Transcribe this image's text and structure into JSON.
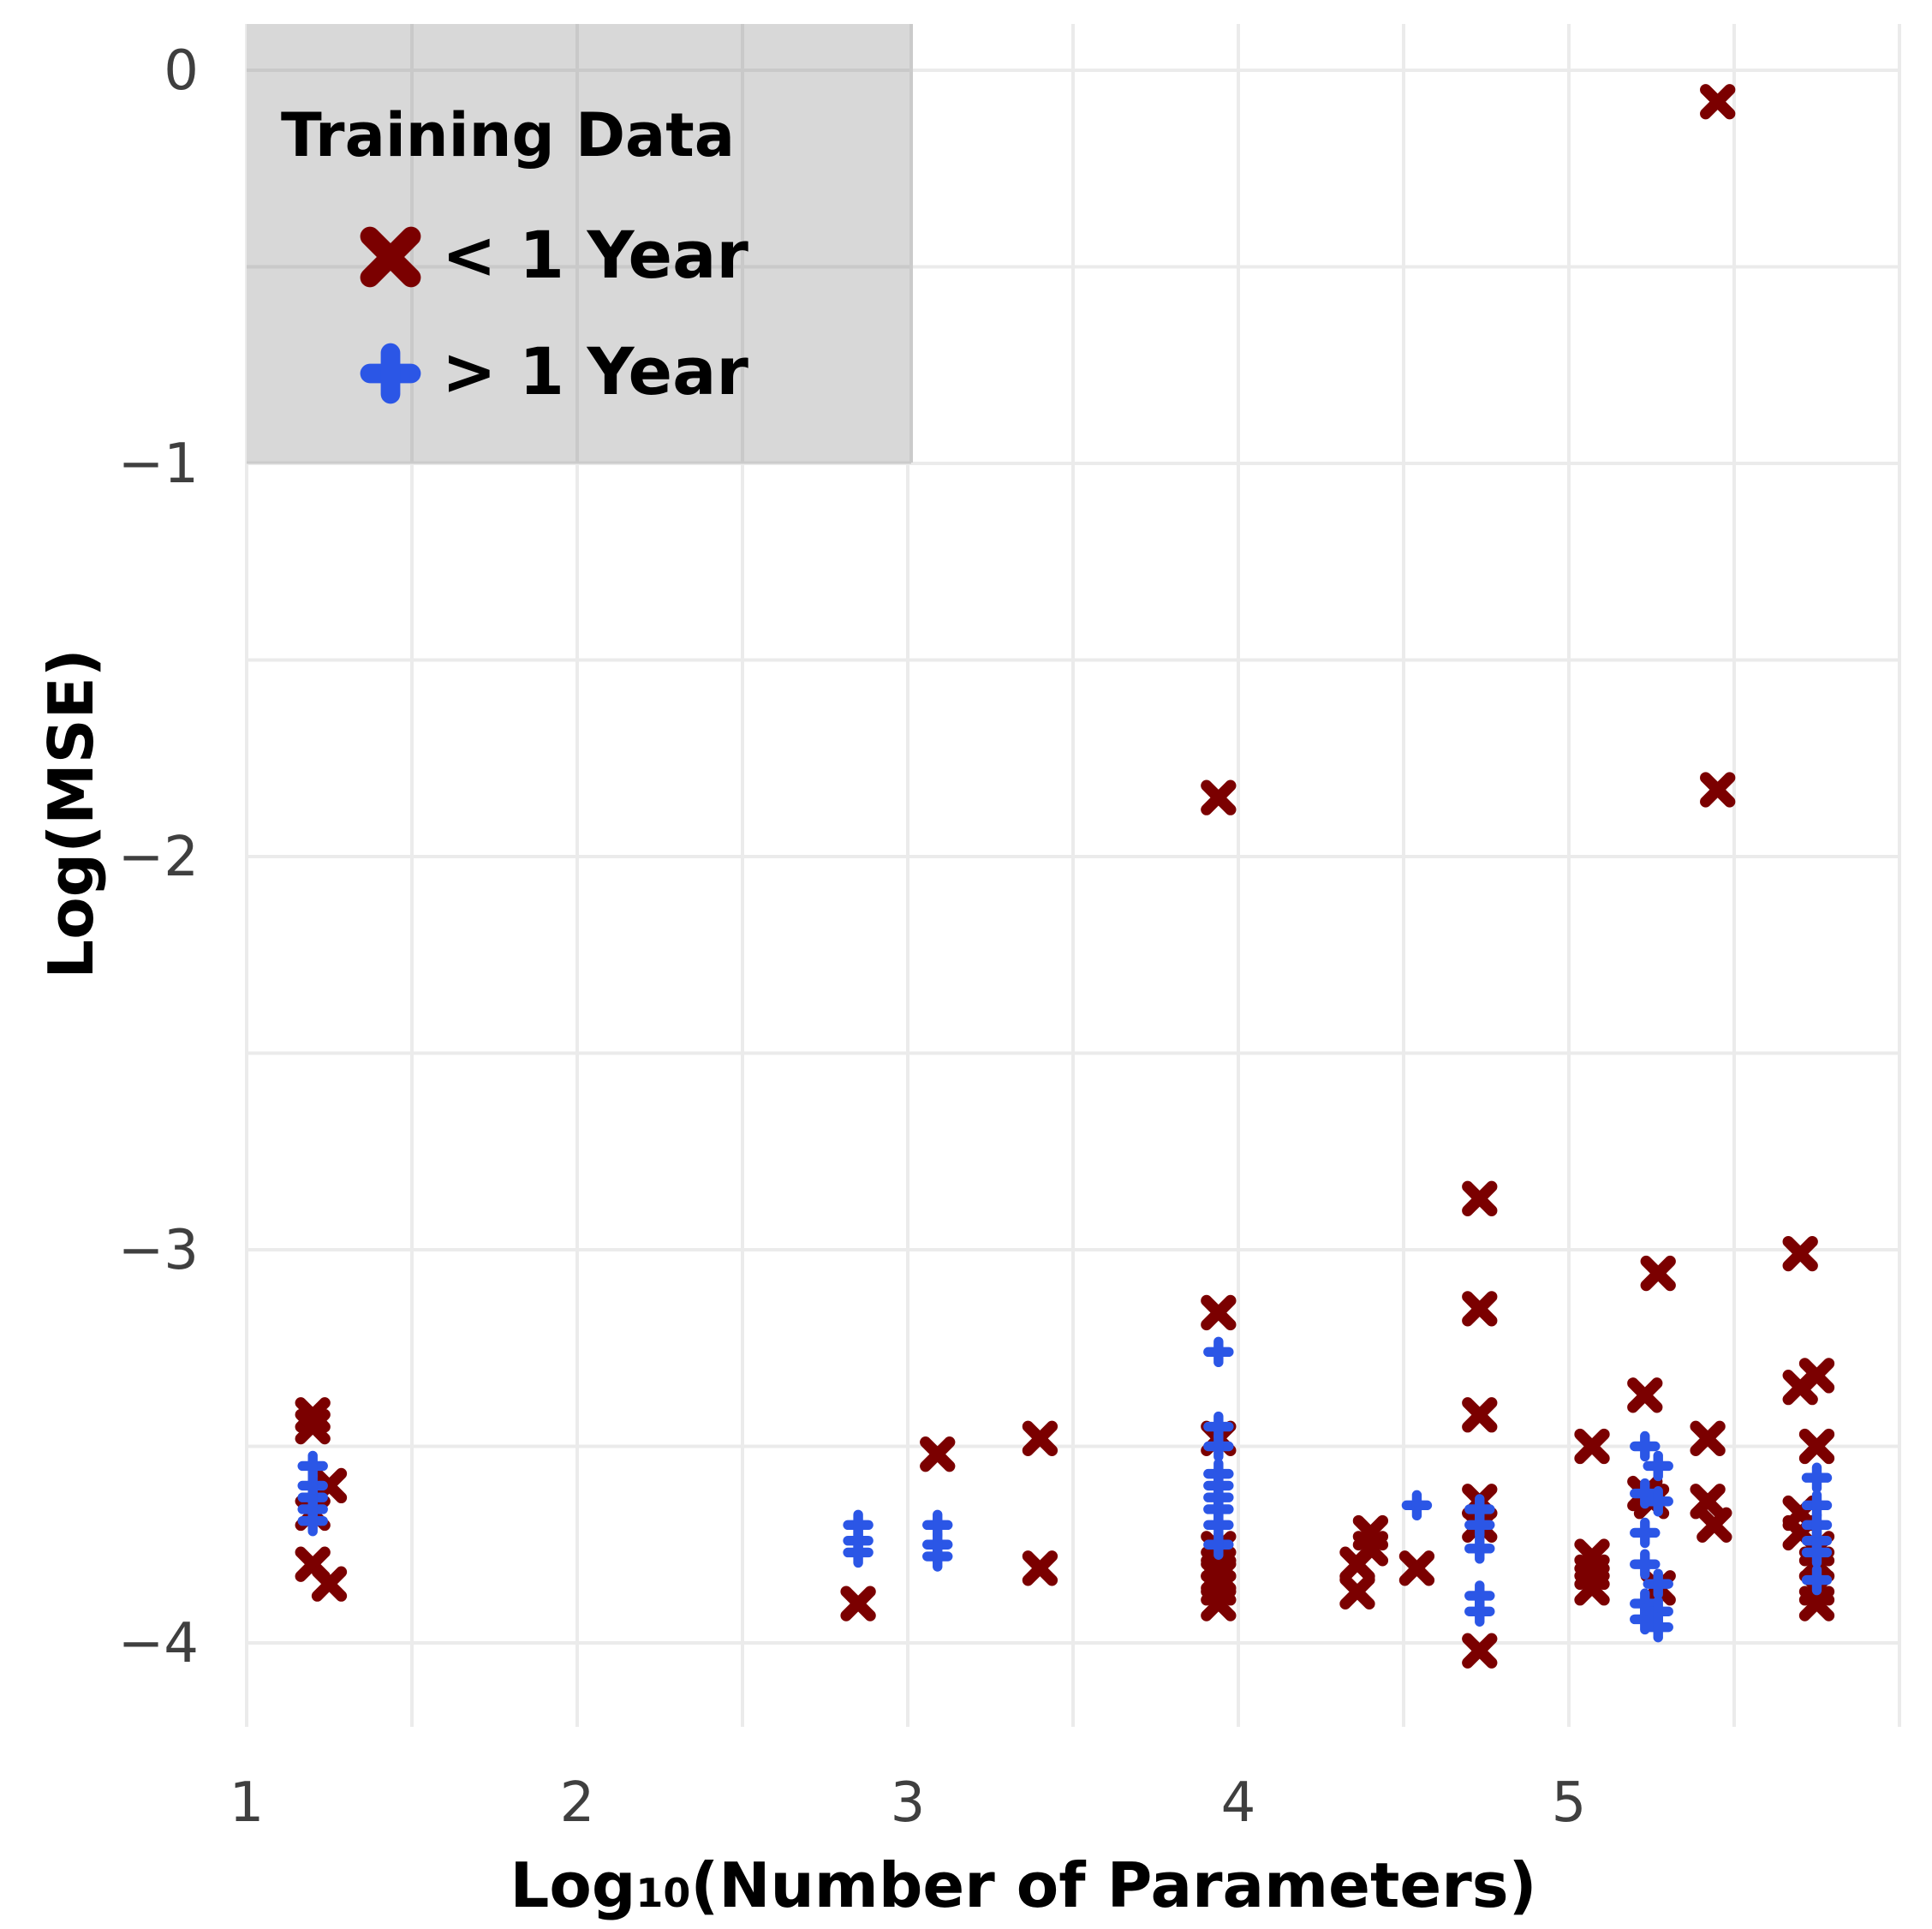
{
  "chart_data": {
    "type": "scatter",
    "title": "",
    "xlabel_main": "Log",
    "xlabel_sub": "10",
    "xlabel_rest": "(Number of Parameters)",
    "ylabel": "Log(MSE)",
    "xlim": [
      1,
      6
    ],
    "ylim": [
      -4.2,
      0.12
    ],
    "x_ticks": [
      1,
      2,
      3,
      4,
      5
    ],
    "y_ticks": [
      0,
      -1,
      -2,
      -3,
      -4
    ],
    "x_tick_labels": [
      "1",
      "2",
      "3",
      "4",
      "5"
    ],
    "y_tick_labels": [
      "0",
      "−1",
      "−2",
      "−3",
      "−4"
    ],
    "grid": true,
    "legend": {
      "title": "Training Data",
      "position": "top-left",
      "entries": [
        "< 1 Year",
        "> 1 Year"
      ]
    },
    "colors": {
      "lt1": "#7b0000",
      "gt1": "#2b56e6",
      "legend_bg": "#d8d8d8",
      "grid": "#ebebeb"
    },
    "series": [
      {
        "name": "< 1 Year",
        "marker": "x",
        "points": [
          [
            1.2,
            -3.42
          ],
          [
            1.2,
            -3.45
          ],
          [
            1.2,
            -3.67
          ],
          [
            1.2,
            -3.8
          ],
          [
            1.25,
            -3.6
          ],
          [
            1.25,
            -3.85
          ],
          [
            2.85,
            -3.9
          ],
          [
            3.09,
            -3.52
          ],
          [
            3.4,
            -3.48
          ],
          [
            3.4,
            -3.81
          ],
          [
            3.94,
            -1.85
          ],
          [
            3.94,
            -3.16
          ],
          [
            3.94,
            -3.48
          ],
          [
            3.94,
            -3.76
          ],
          [
            3.94,
            -3.8
          ],
          [
            3.94,
            -3.83
          ],
          [
            3.94,
            -3.86
          ],
          [
            3.94,
            -3.9
          ],
          [
            4.36,
            -3.8
          ],
          [
            4.36,
            -3.87
          ],
          [
            4.4,
            -3.72
          ],
          [
            4.4,
            -3.76
          ],
          [
            4.54,
            -3.81
          ],
          [
            4.73,
            -2.87
          ],
          [
            4.73,
            -3.15
          ],
          [
            4.73,
            -3.42
          ],
          [
            4.73,
            -3.64
          ],
          [
            4.73,
            -3.7
          ],
          [
            4.73,
            -4.02
          ],
          [
            5.07,
            -3.5
          ],
          [
            5.07,
            -3.78
          ],
          [
            5.07,
            -3.82
          ],
          [
            5.07,
            -3.86
          ],
          [
            5.23,
            -3.37
          ],
          [
            5.23,
            -3.62
          ],
          [
            5.25,
            -3.64
          ],
          [
            5.27,
            -3.06
          ],
          [
            5.27,
            -3.86
          ],
          [
            5.42,
            -3.48
          ],
          [
            5.42,
            -3.64
          ],
          [
            5.44,
            -3.7
          ],
          [
            5.45,
            -0.08
          ],
          [
            5.45,
            -1.83
          ],
          [
            5.7,
            -3.01
          ],
          [
            5.7,
            -3.35
          ],
          [
            5.7,
            -3.67
          ],
          [
            5.7,
            -3.72
          ],
          [
            5.75,
            -3.32
          ],
          [
            5.75,
            -3.5
          ],
          [
            5.75,
            -3.76
          ],
          [
            5.75,
            -3.8
          ],
          [
            5.75,
            -3.86
          ],
          [
            5.75,
            -3.9
          ]
        ]
      },
      {
        "name": "> 1 Year",
        "marker": "plus",
        "points": [
          [
            1.2,
            -3.55
          ],
          [
            1.2,
            -3.6
          ],
          [
            1.2,
            -3.63
          ],
          [
            1.2,
            -3.66
          ],
          [
            1.2,
            -3.69
          ],
          [
            2.85,
            -3.7
          ],
          [
            2.85,
            -3.74
          ],
          [
            2.85,
            -3.77
          ],
          [
            3.09,
            -3.7
          ],
          [
            3.09,
            -3.75
          ],
          [
            3.09,
            -3.78
          ],
          [
            3.94,
            -3.26
          ],
          [
            3.94,
            -3.45
          ],
          [
            3.94,
            -3.5
          ],
          [
            3.94,
            -3.57
          ],
          [
            3.94,
            -3.6
          ],
          [
            3.94,
            -3.63
          ],
          [
            3.94,
            -3.66
          ],
          [
            3.94,
            -3.7
          ],
          [
            3.94,
            -3.75
          ],
          [
            4.54,
            -3.65
          ],
          [
            4.73,
            -3.66
          ],
          [
            4.73,
            -3.7
          ],
          [
            4.73,
            -3.76
          ],
          [
            4.73,
            -3.88
          ],
          [
            4.73,
            -3.92
          ],
          [
            5.23,
            -3.5
          ],
          [
            5.23,
            -3.62
          ],
          [
            5.23,
            -3.72
          ],
          [
            5.23,
            -3.8
          ],
          [
            5.23,
            -3.9
          ],
          [
            5.23,
            -3.94
          ],
          [
            5.27,
            -3.55
          ],
          [
            5.27,
            -3.64
          ],
          [
            5.27,
            -3.85
          ],
          [
            5.27,
            -3.92
          ],
          [
            5.27,
            -3.96
          ],
          [
            5.75,
            -3.58
          ],
          [
            5.75,
            -3.65
          ],
          [
            5.75,
            -3.7
          ],
          [
            5.75,
            -3.74
          ],
          [
            5.75,
            -3.77
          ],
          [
            5.75,
            -3.84
          ]
        ]
      }
    ]
  }
}
